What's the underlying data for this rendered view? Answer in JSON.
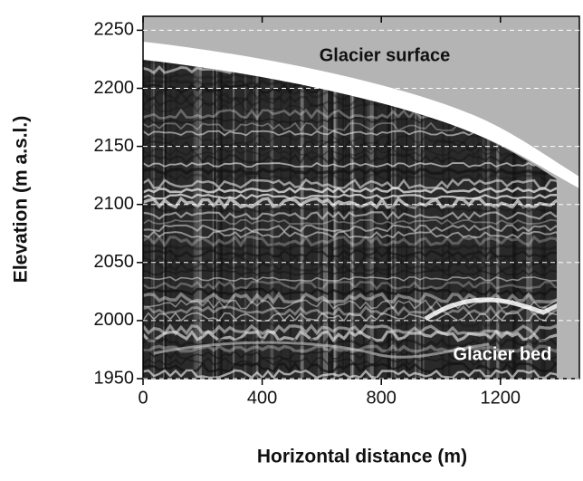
{
  "chart_data": {
    "type": "radargram",
    "xlabel": "Horizontal distance (m)",
    "ylabel": "Elevation (m a.s.l.)",
    "annotations": [
      "Glacier surface",
      "Glacier bed"
    ],
    "xlim": [
      0,
      1465
    ],
    "xticks": [
      0,
      400,
      800,
      1200
    ],
    "ylim": [
      1950,
      2262
    ],
    "yticks": [
      1950,
      2000,
      2050,
      2100,
      2150,
      2200,
      2250
    ],
    "grid": true
  }
}
